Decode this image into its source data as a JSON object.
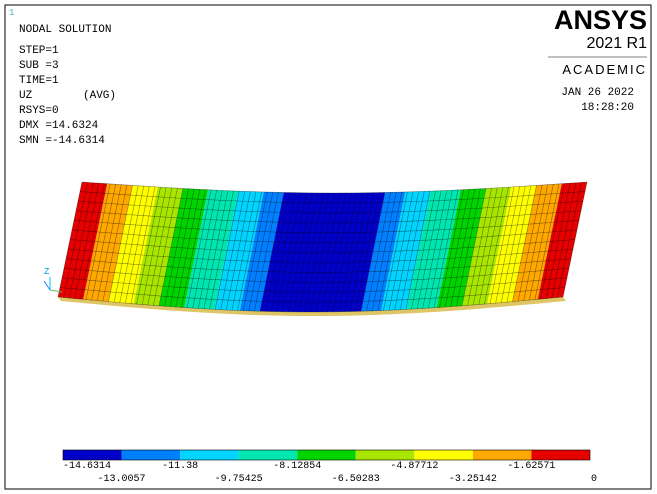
{
  "window_number": "1",
  "header": {
    "title": "NODAL SOLUTION",
    "lines": [
      "STEP=1",
      "SUB =3",
      "TIME=1"
    ],
    "quantity": "UZ",
    "avg": "(AVG)",
    "stats": [
      "RSYS=0",
      "DMX =14.6324",
      "SMN =-14.6314"
    ]
  },
  "brand": {
    "name": "ANSYS",
    "version": "2021 R1",
    "edition": "ACADEMIC",
    "date": "JAN 26 2022",
    "time": "18:28:20"
  },
  "triad": {
    "axis": "Z"
  },
  "legend": {
    "colors": [
      "#0000c8",
      "#0080ff",
      "#00d4ff",
      "#00e6b0",
      "#00d400",
      "#a8e600",
      "#ffff00",
      "#ffa800",
      "#e60000"
    ],
    "labels": [
      "-14.6314",
      "-13.0057",
      "-11.38",
      "-9.75425",
      "-8.12854",
      "-6.50283",
      "-4.87712",
      "-3.25142",
      "-1.62571",
      "0"
    ]
  }
}
